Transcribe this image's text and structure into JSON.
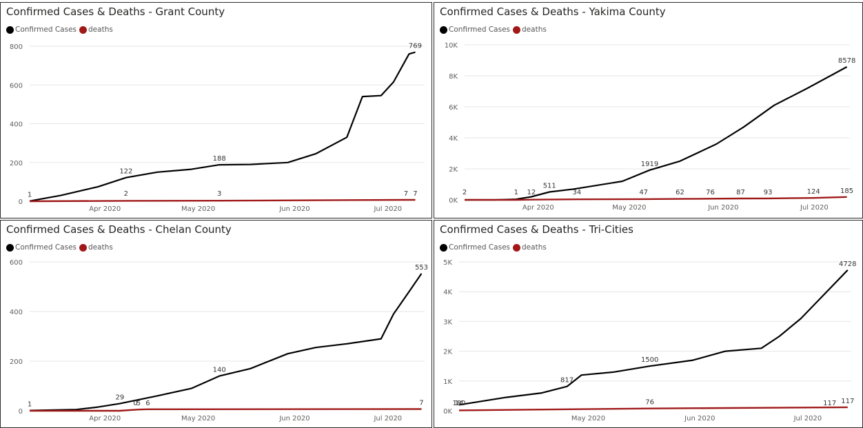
{
  "colors": {
    "cases": "#000000",
    "deaths": "#a01818",
    "grid": "#e6e6e6",
    "axis_text": "#605e5c",
    "label_text": "#333333"
  },
  "legend": {
    "cases_label": "Confirmed Cases",
    "deaths_label": "deaths"
  },
  "chart_data": [
    {
      "type": "line",
      "title": "Confirmed Cases & Deaths - Grant County",
      "x_ticks": [
        "Apr 2020",
        "May 2020",
        "Jun 2020",
        "Jul 2020"
      ],
      "y_ticks": [
        "0",
        "200",
        "400",
        "600",
        "800"
      ],
      "ylim": [
        0,
        800
      ],
      "xlim": [
        "2020-03-10",
        "2020-07-15"
      ],
      "series": [
        {
          "name": "Confirmed Cases",
          "x": [
            "2020-03-10",
            "2020-03-20",
            "2020-04-01",
            "2020-04-10",
            "2020-04-20",
            "2020-05-01",
            "2020-05-10",
            "2020-05-20",
            "2020-06-01",
            "2020-06-10",
            "2020-06-20",
            "2020-06-25",
            "2020-07-01",
            "2020-07-05",
            "2020-07-10",
            "2020-07-12"
          ],
          "y": [
            1,
            30,
            75,
            122,
            150,
            165,
            188,
            190,
            200,
            245,
            330,
            540,
            545,
            615,
            760,
            769
          ]
        },
        {
          "name": "deaths",
          "x": [
            "2020-03-10",
            "2020-04-10",
            "2020-05-10",
            "2020-07-09",
            "2020-07-12"
          ],
          "y": [
            0,
            2,
            3,
            7,
            7
          ]
        }
      ],
      "data_labels": [
        {
          "text": "1",
          "series": 0,
          "x": "2020-03-10",
          "y": 1
        },
        {
          "text": "122",
          "series": 0,
          "x": "2020-04-10",
          "y": 122
        },
        {
          "text": "188",
          "series": 0,
          "x": "2020-05-10",
          "y": 188
        },
        {
          "text": "769",
          "series": 0,
          "x": "2020-07-12",
          "y": 769
        },
        {
          "text": "2",
          "series": 1,
          "x": "2020-04-10",
          "y": 2
        },
        {
          "text": "3",
          "series": 1,
          "x": "2020-05-10",
          "y": 3
        },
        {
          "text": "7",
          "series": 1,
          "x": "2020-07-09",
          "y": 7
        },
        {
          "text": "7",
          "series": 1,
          "x": "2020-07-12",
          "y": 7
        }
      ],
      "grid": true,
      "legend_position": "top-left"
    },
    {
      "type": "line",
      "title": "Confirmed Cases & Deaths - Yakima County",
      "x_ticks": [
        "Apr 2020",
        "May 2020",
        "Jun 2020",
        "Jul 2020"
      ],
      "y_ticks": [
        "0K",
        "2K",
        "4K",
        "6K",
        "8K",
        "10K"
      ],
      "ylim": [
        0,
        10000
      ],
      "xlim": [
        "2020-03-10",
        "2020-07-15"
      ],
      "series": [
        {
          "name": "Confirmed Cases",
          "x": [
            "2020-03-10",
            "2020-03-20",
            "2020-03-27",
            "2020-04-01",
            "2020-04-07",
            "2020-04-15",
            "2020-05-01",
            "2020-05-10",
            "2020-05-20",
            "2020-06-01",
            "2020-06-10",
            "2020-06-20",
            "2020-07-01",
            "2020-07-14"
          ],
          "y": [
            2,
            1,
            40,
            200,
            511,
            700,
            1200,
            1919,
            2500,
            3600,
            4700,
            6100,
            7200,
            8578
          ]
        },
        {
          "name": "deaths",
          "x": [
            "2020-03-10",
            "2020-03-27",
            "2020-04-01",
            "2020-04-16",
            "2020-05-08",
            "2020-05-20",
            "2020-05-30",
            "2020-06-09",
            "2020-06-18",
            "2020-07-03",
            "2020-07-14"
          ],
          "y": [
            0,
            1,
            12,
            34,
            47,
            62,
            76,
            87,
            93,
            124,
            185
          ]
        }
      ],
      "data_labels": [
        {
          "text": "2",
          "series": 1,
          "x": "2020-03-10",
          "y": 0
        },
        {
          "text": "1",
          "series": 1,
          "x": "2020-03-27",
          "y": 1
        },
        {
          "text": "12",
          "series": 1,
          "x": "2020-04-01",
          "y": 12
        },
        {
          "text": "511",
          "series": 0,
          "x": "2020-04-07",
          "y": 511
        },
        {
          "text": "34",
          "series": 1,
          "x": "2020-04-16",
          "y": 34
        },
        {
          "text": "47",
          "series": 1,
          "x": "2020-05-08",
          "y": 47
        },
        {
          "text": "1919",
          "series": 0,
          "x": "2020-05-10",
          "y": 1919
        },
        {
          "text": "62",
          "series": 1,
          "x": "2020-05-20",
          "y": 62
        },
        {
          "text": "76",
          "series": 1,
          "x": "2020-05-30",
          "y": 76
        },
        {
          "text": "87",
          "series": 1,
          "x": "2020-06-09",
          "y": 87
        },
        {
          "text": "93",
          "series": 1,
          "x": "2020-06-18",
          "y": 93
        },
        {
          "text": "124",
          "series": 1,
          "x": "2020-07-03",
          "y": 124
        },
        {
          "text": "185",
          "series": 1,
          "x": "2020-07-14",
          "y": 185
        },
        {
          "text": "8578",
          "series": 0,
          "x": "2020-07-14",
          "y": 8578
        }
      ],
      "grid": true,
      "legend_position": "top-left"
    },
    {
      "type": "line",
      "title": "Confirmed Cases & Deaths - Chelan County",
      "x_ticks": [
        "Apr 2020",
        "May 2020",
        "Jun 2020",
        "Jul 2020"
      ],
      "y_ticks": [
        "0",
        "200",
        "400",
        "600"
      ],
      "ylim": [
        0,
        600
      ],
      "xlim": [
        "2020-03-10",
        "2020-07-15"
      ],
      "series": [
        {
          "name": "Confirmed Cases",
          "x": [
            "2020-03-10",
            "2020-03-25",
            "2020-04-01",
            "2020-04-08",
            "2020-04-20",
            "2020-05-01",
            "2020-05-10",
            "2020-05-20",
            "2020-06-01",
            "2020-06-10",
            "2020-06-20",
            "2020-07-01",
            "2020-07-05",
            "2020-07-10",
            "2020-07-14"
          ],
          "y": [
            1,
            5,
            15,
            29,
            60,
            90,
            140,
            170,
            230,
            255,
            270,
            290,
            390,
            480,
            553
          ]
        },
        {
          "name": "deaths",
          "x": [
            "2020-03-10",
            "2020-04-08",
            "2020-04-14",
            "2020-04-17",
            "2020-07-14"
          ],
          "y": [
            0,
            0,
            5,
            6,
            7
          ]
        }
      ],
      "data_labels": [
        {
          "text": "1",
          "series": 0,
          "x": "2020-03-10",
          "y": 1
        },
        {
          "text": "29",
          "series": 0,
          "x": "2020-04-08",
          "y": 29
        },
        {
          "text": "0",
          "series": 1,
          "x": "2020-04-13",
          "y": 0
        },
        {
          "text": "5",
          "series": 1,
          "x": "2020-04-14",
          "y": 5
        },
        {
          "text": "6",
          "series": 1,
          "x": "2020-04-17",
          "y": 6
        },
        {
          "text": "140",
          "series": 0,
          "x": "2020-05-10",
          "y": 140
        },
        {
          "text": "553",
          "series": 0,
          "x": "2020-07-14",
          "y": 553
        },
        {
          "text": "7",
          "series": 1,
          "x": "2020-07-14",
          "y": 7
        }
      ],
      "grid": true,
      "legend_position": "top-left"
    },
    {
      "type": "line",
      "title": "Confirmed Cases & Deaths - Tri-Cities",
      "x_ticks": [
        "May 2020",
        "Jun 2020",
        "Jul 2020"
      ],
      "y_ticks": [
        "0K",
        "1K",
        "2K",
        "3K",
        "4K",
        "5K"
      ],
      "ylim": [
        0,
        5000
      ],
      "xlim": [
        "2020-03-28",
        "2020-07-15"
      ],
      "series": [
        {
          "name": "Confirmed Cases",
          "x": [
            "2020-03-28",
            "2020-04-10",
            "2020-04-20",
            "2020-04-27",
            "2020-05-01",
            "2020-05-10",
            "2020-05-20",
            "2020-06-01",
            "2020-06-10",
            "2020-06-20",
            "2020-06-25",
            "2020-07-01",
            "2020-07-05",
            "2020-07-14"
          ],
          "y": [
            200,
            450,
            600,
            817,
            1200,
            1300,
            1500,
            1700,
            2000,
            2100,
            2500,
            3100,
            3600,
            4728
          ]
        },
        {
          "name": "deaths",
          "x": [
            "2020-03-28",
            "2020-05-20",
            "2020-07-14"
          ],
          "y": [
            14,
            76,
            117
          ]
        }
      ],
      "data_labels": [
        {
          "text": "14",
          "series": 1,
          "x": "2020-03-28",
          "y": 14
        },
        {
          "text": "180",
          "series": 1,
          "x": "2020-03-28",
          "y": 0
        },
        {
          "text": "817",
          "series": 0,
          "x": "2020-04-27",
          "y": 817
        },
        {
          "text": "76",
          "series": 1,
          "x": "2020-05-20",
          "y": 76
        },
        {
          "text": "1500",
          "series": 0,
          "x": "2020-05-20",
          "y": 1500
        },
        {
          "text": "117",
          "series": 1,
          "x": "2020-07-09",
          "y": 0
        },
        {
          "text": "4728",
          "series": 0,
          "x": "2020-07-14",
          "y": 4728
        },
        {
          "text": "117",
          "series": 1,
          "x": "2020-07-14",
          "y": 117
        }
      ],
      "grid": true,
      "legend_position": "top-left"
    }
  ]
}
